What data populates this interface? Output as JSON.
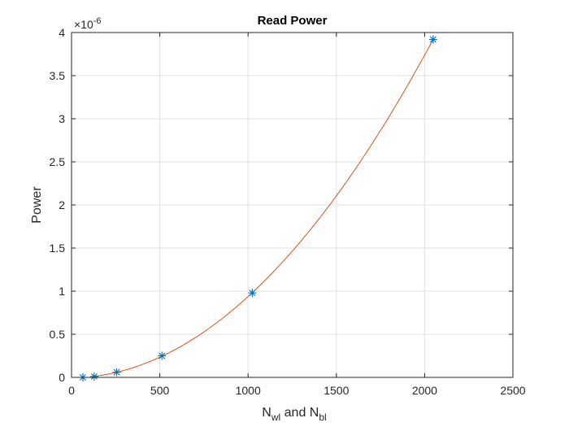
{
  "chart_data": {
    "type": "scatter",
    "title": "Read Power",
    "xlabel": {
      "main": "N",
      "sub1": "wl",
      "middle": " and N",
      "sub2": "bl"
    },
    "ylabel": "Power",
    "y_multiplier_base": "×10",
    "y_multiplier_exp": "-6",
    "xlim": [
      0,
      2500
    ],
    "ylim": [
      0,
      4
    ],
    "xticks": [
      0,
      500,
      1000,
      1500,
      2000,
      2500
    ],
    "yticks": [
      0,
      0.5,
      1,
      1.5,
      2,
      2.5,
      3,
      3.5,
      4
    ],
    "xtick_labels": [
      "0",
      "500",
      "1000",
      "1500",
      "2000",
      "2500"
    ],
    "ytick_labels": [
      "0",
      "0.5",
      "1",
      "1.5",
      "2",
      "2.5",
      "3",
      "3.5",
      "4"
    ],
    "grid": true,
    "series": [
      {
        "marker": "asterisk",
        "x": [
          64,
          128,
          256,
          512,
          1024,
          2048
        ],
        "y": [
          0.0,
          0.01,
          0.06,
          0.25,
          0.98,
          3.92
        ]
      }
    ],
    "fit": {
      "type": "quadratic",
      "x_start": 128,
      "x_end": 2048
    },
    "colors": {
      "marker": "#0072bd",
      "fit_line": "#d95319",
      "grid": "#e0e0e0",
      "axes": "#262626"
    }
  }
}
